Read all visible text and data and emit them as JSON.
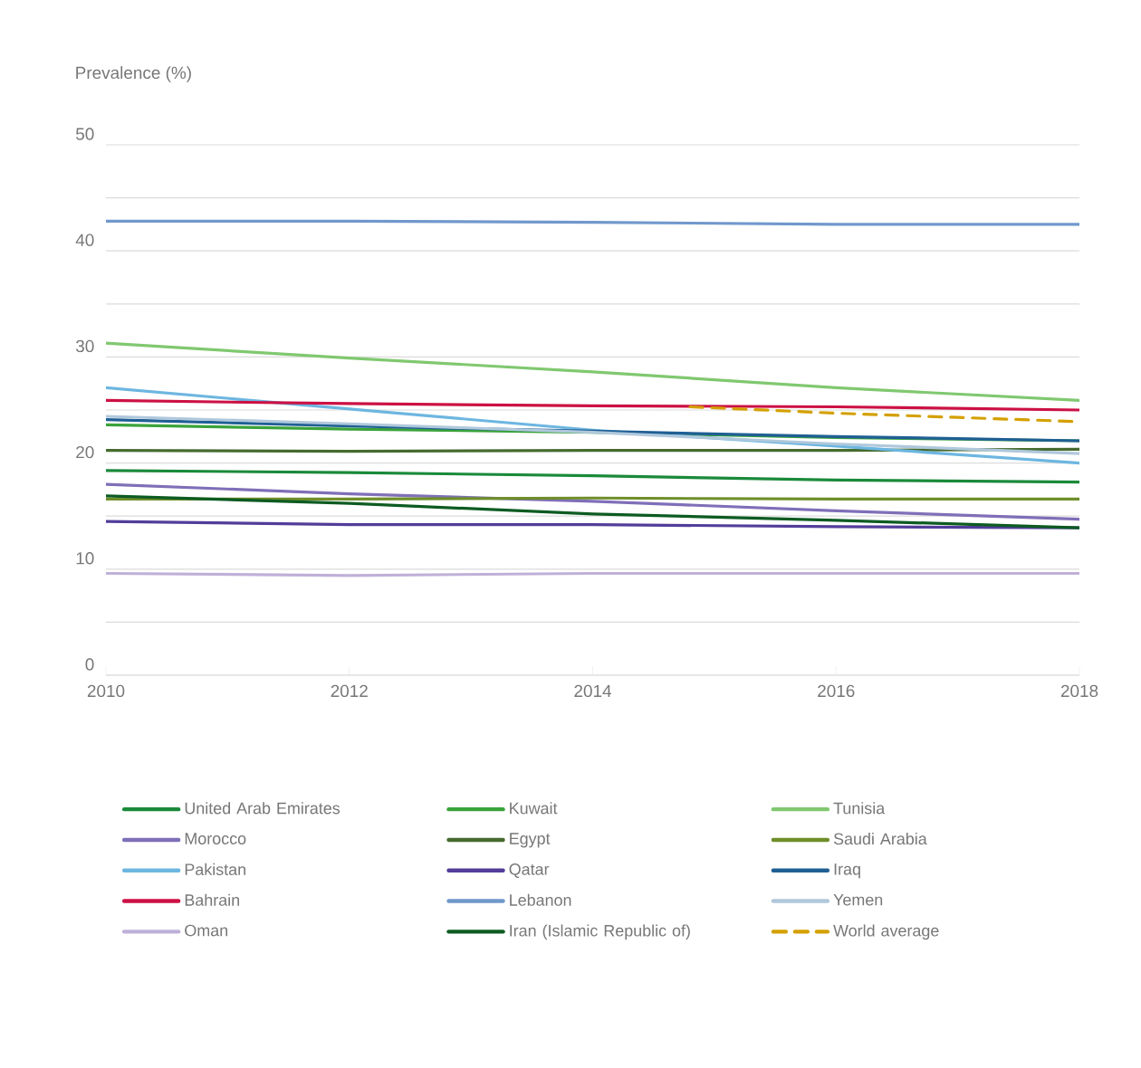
{
  "chart_data": {
    "type": "line",
    "ylabel": "Prevalence (%)",
    "x": [
      2010,
      2012,
      2014,
      2016,
      2018
    ],
    "xlim": [
      2010,
      2018
    ],
    "xticks": [
      2010,
      2012,
      2014,
      2016,
      2018
    ],
    "ylim": [
      0,
      50
    ],
    "yticks": [
      0,
      {
        "value": 5,
        "label": null
      },
      10,
      {
        "value": 15,
        "label": null
      },
      20,
      {
        "value": 25,
        "label": null
      },
      30,
      {
        "value": 35,
        "label": null
      },
      40,
      {
        "value": 45,
        "label": null
      },
      50
    ],
    "grid": "y",
    "legend": "bottom",
    "marker": "none",
    "line_style": "solid",
    "series": [
      {
        "name": "United Arab Emirates",
        "color": "#1a8a3a",
        "values": [
          19.3,
          19.1,
          18.8,
          18.4,
          18.2
        ]
      },
      {
        "name": "Kuwait",
        "color": "#3aa33a",
        "values": [
          23.6,
          23.2,
          22.9,
          22.4,
          22.1
        ]
      },
      {
        "name": "Tunisia",
        "color": "#80c870",
        "values": [
          31.3,
          29.9,
          28.6,
          27.1,
          25.9
        ]
      },
      {
        "name": "Morocco",
        "color": "#7f6fb8",
        "values": [
          18.0,
          17.1,
          16.4,
          15.5,
          14.7
        ]
      },
      {
        "name": "Egypt",
        "color": "#456b2e",
        "values": [
          21.2,
          21.1,
          21.2,
          21.2,
          21.3
        ]
      },
      {
        "name": "Saudi Arabia",
        "color": "#6f8e2a",
        "values": [
          16.6,
          16.6,
          16.7,
          16.6,
          16.6
        ]
      },
      {
        "name": "Pakistan",
        "color": "#6db6e0",
        "values": [
          27.1,
          25.1,
          23.1,
          21.6,
          20.0
        ]
      },
      {
        "name": "Qatar",
        "color": "#523d9a",
        "values": [
          14.5,
          14.2,
          14.2,
          14.0,
          13.9
        ]
      },
      {
        "name": "Iraq",
        "color": "#1f5f94",
        "values": [
          24.1,
          23.5,
          23.0,
          22.5,
          22.1
        ]
      },
      {
        "name": "Bahrain",
        "color": "#cc1144",
        "values": [
          25.9,
          25.6,
          25.4,
          25.3,
          25.0
        ]
      },
      {
        "name": "Lebanon",
        "color": "#7098cc",
        "values": [
          42.8,
          42.8,
          42.7,
          42.5,
          42.5
        ]
      },
      {
        "name": "Yemen",
        "color": "#b0c8dc",
        "values": [
          24.4,
          23.7,
          22.9,
          21.8,
          20.9
        ]
      },
      {
        "name": "Oman",
        "color": "#bfb0d8",
        "values": [
          9.6,
          9.4,
          9.6,
          9.6,
          9.6
        ]
      },
      {
        "name": "Iran (Islamic Republic of)",
        "color": "#0d5b22",
        "values": [
          16.9,
          16.2,
          15.2,
          14.6,
          13.9
        ]
      },
      {
        "name": "World average",
        "color": "#d4a000",
        "x": [
          2014.8,
          2016,
          2018
        ],
        "values": [
          25.3,
          24.7,
          23.9
        ],
        "line_style": "dashed"
      }
    ]
  }
}
